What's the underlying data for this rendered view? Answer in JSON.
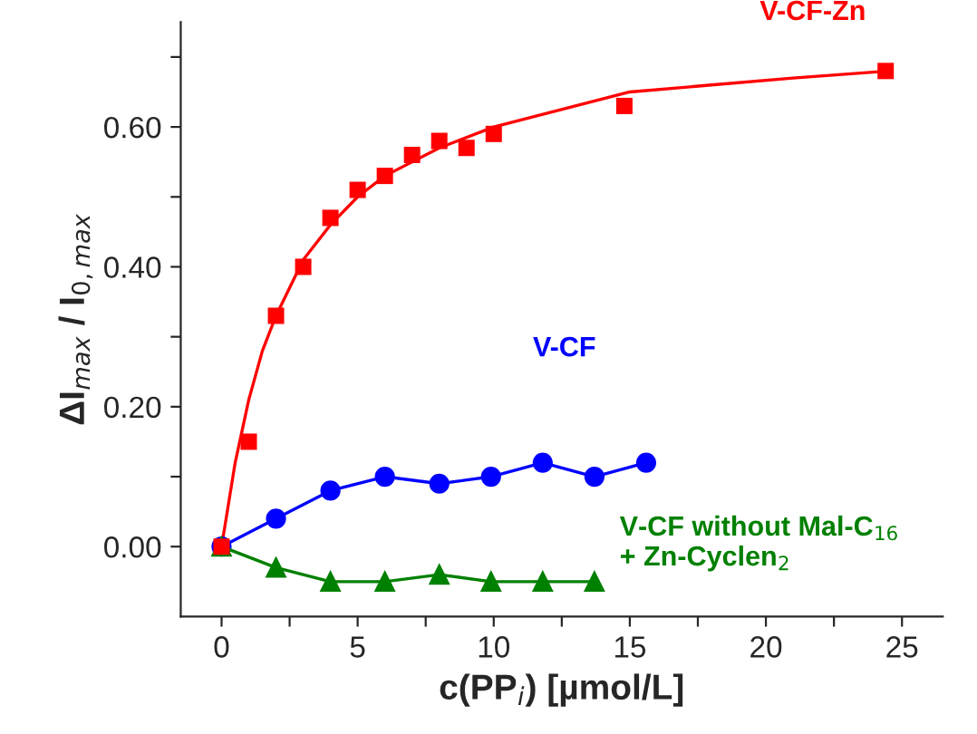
{
  "chart_data": {
    "type": "scatter",
    "xlabel": "c(PP$_{i}$) [µmol/L]",
    "ylabel": "ΔI$_{max}$ / I$_{0,max}$",
    "xlim": [
      -1.5,
      26.5
    ],
    "ylim": [
      -0.1,
      0.75
    ],
    "xticks": [
      0,
      {
        "value": 2.5,
        "label": null
      },
      5,
      {
        "value": 7.5,
        "label": null
      },
      10,
      {
        "value": 12.5,
        "label": null
      },
      15,
      {
        "value": 17.5,
        "label": null
      },
      20,
      {
        "value": 22.5,
        "label": null
      },
      25
    ],
    "yticks": [
      {
        "value": 0.0,
        "label": "0.00"
      },
      {
        "value": 0.1,
        "label": null
      },
      {
        "value": 0.2,
        "label": "0.20"
      },
      {
        "value": 0.3,
        "label": null
      },
      {
        "value": 0.4,
        "label": "0.40"
      },
      {
        "value": 0.5,
        "label": null
      },
      {
        "value": 0.6,
        "label": "0.60"
      },
      {
        "value": 0.7,
        "label": null
      }
    ],
    "grid": false,
    "series": [
      {
        "type": "line",
        "color": "#ff0000",
        "marker": "none",
        "x": [
          0,
          0.5,
          1,
          1.5,
          2,
          3,
          4,
          5,
          6,
          8,
          10,
          12,
          15,
          18,
          21,
          24.5
        ],
        "values": [
          0,
          0.12,
          0.21,
          0.28,
          0.33,
          0.41,
          0.46,
          0.5,
          0.53,
          0.57,
          0.6,
          0.62,
          0.65,
          0.66,
          0.67,
          0.68
        ]
      },
      {
        "name": "V-CF-Zn",
        "color": "#ff0000",
        "marker": "square",
        "x": [
          0,
          1,
          2,
          3,
          4,
          5,
          6,
          7,
          8,
          9,
          10,
          14.8,
          24.4
        ],
        "values": [
          0,
          0.15,
          0.33,
          0.4,
          0.47,
          0.51,
          0.53,
          0.56,
          0.58,
          0.57,
          0.59,
          0.63,
          0.68
        ]
      },
      {
        "type": "line",
        "name": "V-CF",
        "color": "#0000ff",
        "marker": "circle",
        "x": [
          0,
          2,
          4,
          6,
          8,
          9.9,
          11.8,
          13.7,
          15.6
        ],
        "values": [
          0,
          0.04,
          0.08,
          0.1,
          0.09,
          0.1,
          0.12,
          0.1,
          0.12
        ]
      },
      {
        "type": "line",
        "name": "V-CF without Mal-C$_{16}$\n+ Zn-Cyclen$_{2}$",
        "color": "#008000",
        "marker": "triangle",
        "x": [
          0,
          2,
          4,
          6,
          8,
          9.9,
          11.8,
          13.7
        ],
        "values": [
          0,
          -0.03,
          -0.05,
          -0.05,
          -0.04,
          -0.05,
          -0.05,
          -0.05
        ]
      }
    ]
  }
}
